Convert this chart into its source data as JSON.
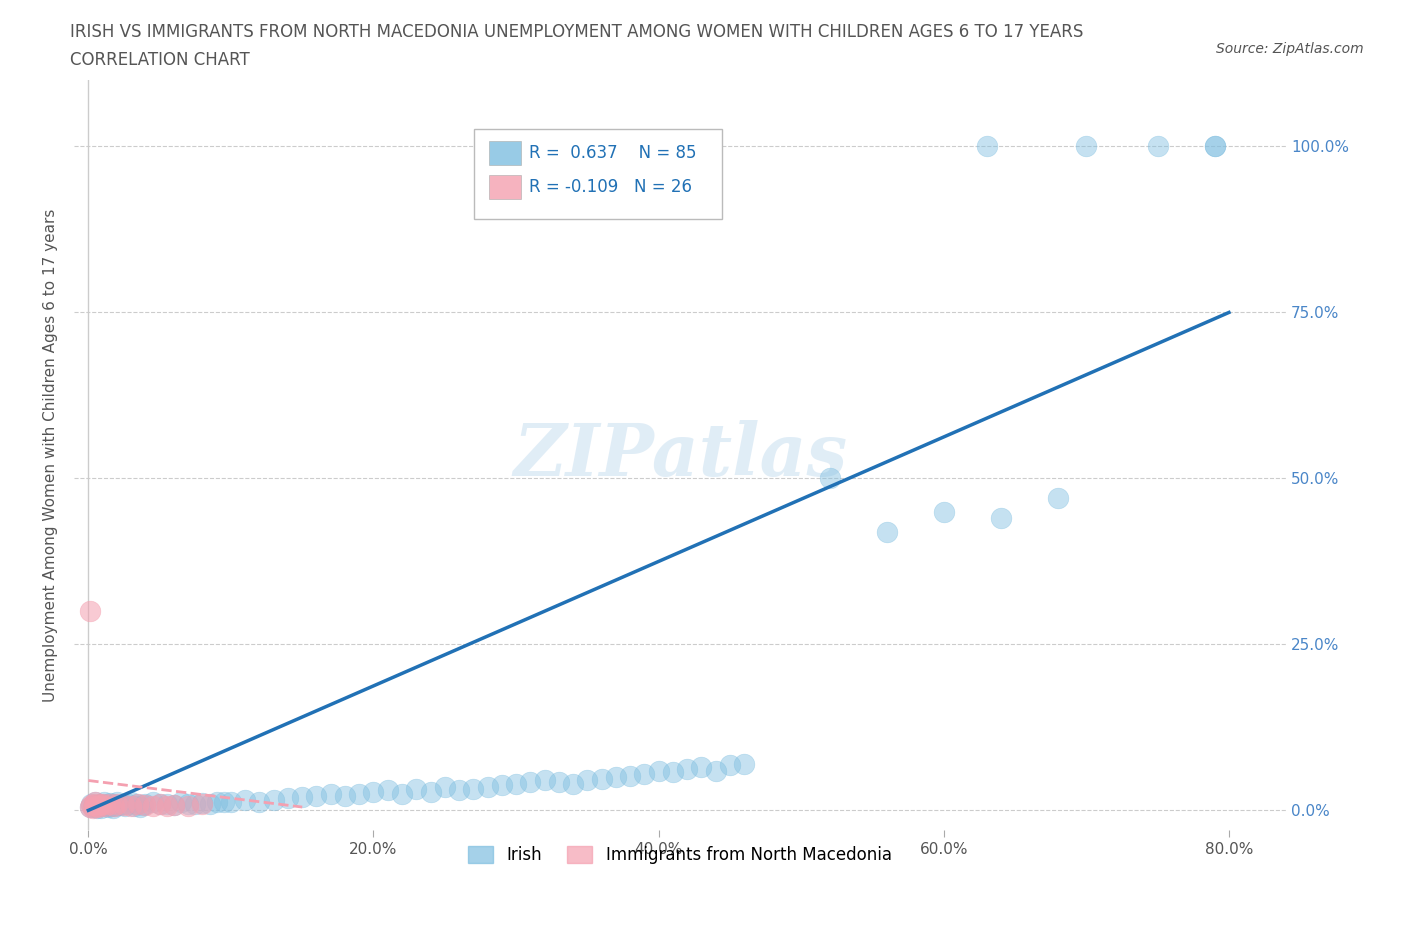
{
  "title_line1": "IRISH VS IMMIGRANTS FROM NORTH MACEDONIA UNEMPLOYMENT AMONG WOMEN WITH CHILDREN AGES 6 TO 17 YEARS",
  "title_line2": "CORRELATION CHART",
  "source": "Source: ZipAtlas.com",
  "ylabel": "Unemployment Among Women with Children Ages 6 to 17 years",
  "x_tick_labels": [
    "0.0%",
    "20.0%",
    "40.0%",
    "60.0%",
    "80.0%"
  ],
  "y_tick_labels_right": [
    "0.0%",
    "25.0%",
    "50.0%",
    "75.0%",
    "100.0%"
  ],
  "x_ticks": [
    0.0,
    0.2,
    0.4,
    0.6,
    0.8
  ],
  "y_ticks": [
    0.0,
    0.25,
    0.5,
    0.75,
    1.0
  ],
  "xlim": [
    -0.01,
    0.84
  ],
  "ylim": [
    -0.03,
    1.1
  ],
  "irish_color": "#7fbee0",
  "north_mac_color": "#f4a0b0",
  "irish_line_color": "#2171b5",
  "north_mac_line_color": "#f4a0b0",
  "irish_R": 0.637,
  "irish_N": 85,
  "north_mac_R": -0.109,
  "north_mac_N": 26,
  "watermark": "ZIPatlas",
  "legend_irish_label": "Irish",
  "legend_mac_label": "Immigrants from North Macedonia",
  "irish_line_x0": 0.0,
  "irish_line_y0": 0.0,
  "irish_line_x1": 0.8,
  "irish_line_y1": 0.75,
  "north_mac_line_x0": 0.0,
  "north_mac_line_y0": 0.045,
  "north_mac_line_x1": 0.15,
  "north_mac_line_y1": 0.005,
  "irish_scatter_x": [
    0.001,
    0.002,
    0.003,
    0.004,
    0.005,
    0.006,
    0.007,
    0.008,
    0.009,
    0.01,
    0.011,
    0.012,
    0.013,
    0.014,
    0.015,
    0.016,
    0.017,
    0.018,
    0.019,
    0.02,
    0.022,
    0.024,
    0.026,
    0.028,
    0.03,
    0.032,
    0.034,
    0.036,
    0.038,
    0.04,
    0.045,
    0.05,
    0.055,
    0.06,
    0.065,
    0.07,
    0.075,
    0.08,
    0.085,
    0.09,
    0.095,
    0.1,
    0.11,
    0.12,
    0.13,
    0.14,
    0.15,
    0.16,
    0.17,
    0.18,
    0.19,
    0.2,
    0.21,
    0.22,
    0.23,
    0.24,
    0.25,
    0.26,
    0.27,
    0.28,
    0.29,
    0.3,
    0.31,
    0.32,
    0.33,
    0.34,
    0.35,
    0.36,
    0.37,
    0.38,
    0.39,
    0.4,
    0.41,
    0.42,
    0.43,
    0.44,
    0.45,
    0.46,
    0.52,
    0.56,
    0.6,
    0.64,
    0.68,
    0.75,
    0.79
  ],
  "irish_scatter_y": [
    0.005,
    0.01,
    0.005,
    0.008,
    0.012,
    0.003,
    0.007,
    0.01,
    0.004,
    0.008,
    0.012,
    0.006,
    0.009,
    0.005,
    0.011,
    0.007,
    0.004,
    0.01,
    0.006,
    0.012,
    0.008,
    0.01,
    0.006,
    0.009,
    0.012,
    0.007,
    0.01,
    0.005,
    0.008,
    0.01,
    0.012,
    0.009,
    0.01,
    0.008,
    0.012,
    0.01,
    0.009,
    0.011,
    0.01,
    0.013,
    0.012,
    0.012,
    0.015,
    0.012,
    0.015,
    0.018,
    0.02,
    0.022,
    0.025,
    0.022,
    0.025,
    0.028,
    0.03,
    0.025,
    0.032,
    0.028,
    0.035,
    0.03,
    0.032,
    0.035,
    0.038,
    0.04,
    0.042,
    0.045,
    0.042,
    0.04,
    0.045,
    0.048,
    0.05,
    0.052,
    0.055,
    0.06,
    0.058,
    0.062,
    0.065,
    0.06,
    0.068,
    0.07,
    0.5,
    0.42,
    0.45,
    0.44,
    0.47,
    1.0,
    1.0
  ],
  "north_mac_scatter_x": [
    0.001,
    0.002,
    0.003,
    0.004,
    0.005,
    0.005,
    0.006,
    0.007,
    0.008,
    0.009,
    0.01,
    0.012,
    0.015,
    0.018,
    0.02,
    0.025,
    0.03,
    0.035,
    0.04,
    0.045,
    0.05,
    0.055,
    0.06,
    0.07,
    0.08,
    0.001
  ],
  "north_mac_scatter_y": [
    0.005,
    0.008,
    0.004,
    0.01,
    0.006,
    0.012,
    0.007,
    0.005,
    0.009,
    0.008,
    0.01,
    0.007,
    0.009,
    0.006,
    0.01,
    0.008,
    0.007,
    0.009,
    0.008,
    0.006,
    0.01,
    0.007,
    0.008,
    0.006,
    0.009,
    0.3
  ]
}
